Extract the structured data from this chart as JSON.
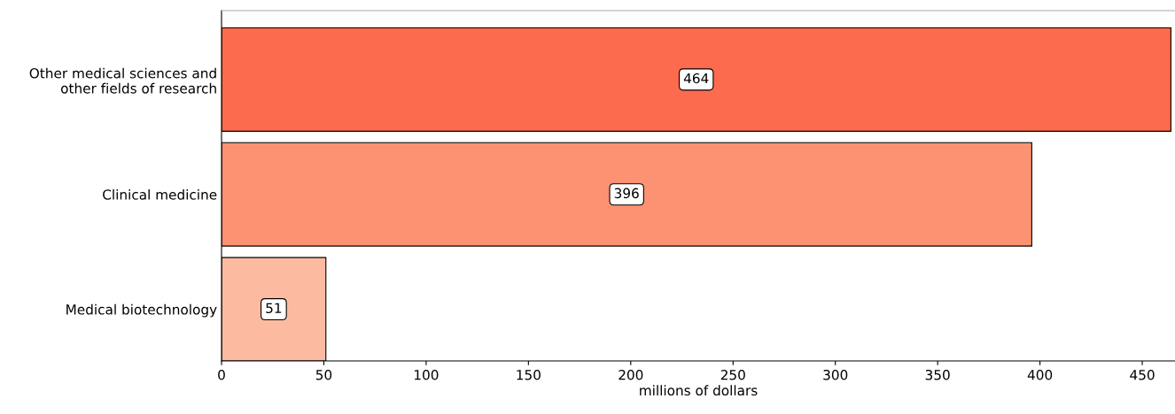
{
  "chart_data": {
    "type": "bar",
    "orientation": "horizontal",
    "xlabel": "millions of dollars",
    "categories": [
      "Other medical sciences and\nother fields of research",
      "Clinical medicine",
      "Medical biotechnology"
    ],
    "values": [
      464,
      396,
      51
    ],
    "colors": [
      "#fc6b4d",
      "#fc9272",
      "#fcbba1"
    ],
    "xlim": [
      0,
      466
    ],
    "xticks": [
      0,
      50,
      100,
      150,
      200,
      250,
      300,
      350,
      400,
      450
    ],
    "data_labels": true,
    "grid": false,
    "legend": false
  }
}
